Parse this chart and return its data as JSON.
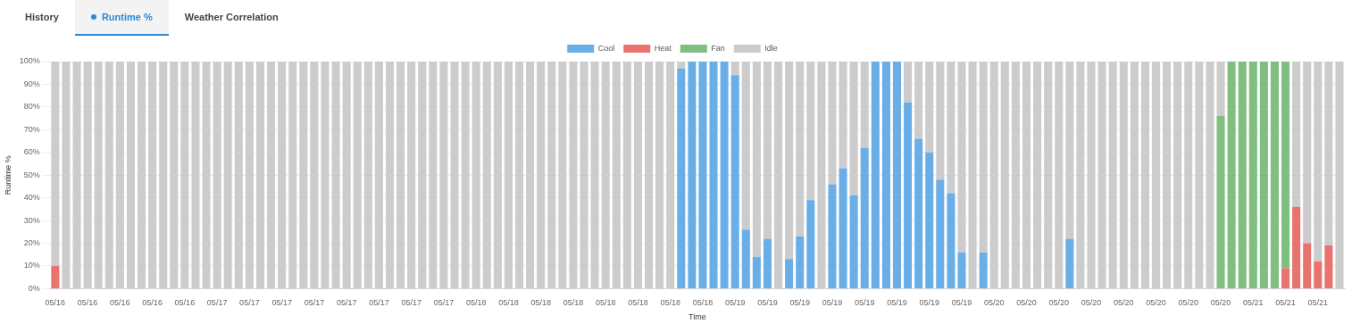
{
  "chart_data": {
    "type": "bar",
    "stacked": true,
    "xlabel": "Time",
    "ylabel": "Runtime %",
    "legend": "top",
    "grid": "y",
    "annotations": [
      "History",
      "Runtime %",
      "Weather Correlation"
    ],
    "ylim": [
      0,
      100
    ],
    "yticks": [
      {
        "value": 0,
        "label": "0%"
      },
      {
        "value": 10,
        "label": "10%"
      },
      {
        "value": 20,
        "label": "20%"
      },
      {
        "value": 30,
        "label": "30%"
      },
      {
        "value": 40,
        "label": "40%"
      },
      {
        "value": 50,
        "label": "50%"
      },
      {
        "value": 60,
        "label": "60%"
      },
      {
        "value": 70,
        "label": "70%"
      },
      {
        "value": 80,
        "label": "80%"
      },
      {
        "value": 90,
        "label": "90%"
      },
      {
        "value": 100,
        "label": "100%"
      }
    ],
    "categories": [
      "05/16",
      null,
      null,
      "05/16",
      null,
      null,
      "05/16",
      null,
      null,
      "05/16",
      null,
      null,
      "05/16",
      null,
      null,
      "05/17",
      null,
      null,
      "05/17",
      null,
      null,
      "05/17",
      null,
      null,
      "05/17",
      null,
      null,
      "05/17",
      null,
      null,
      "05/17",
      null,
      null,
      "05/17",
      null,
      null,
      "05/17",
      null,
      null,
      "05/18",
      null,
      null,
      "05/18",
      null,
      null,
      "05/18",
      null,
      null,
      "05/18",
      null,
      null,
      "05/18",
      null,
      null,
      "05/18",
      null,
      null,
      "05/18",
      null,
      null,
      "05/18",
      null,
      null,
      "05/19",
      null,
      null,
      "05/19",
      null,
      null,
      "05/19",
      null,
      null,
      "05/19",
      null,
      null,
      "05/19",
      null,
      null,
      "05/19",
      null,
      null,
      "05/19",
      null,
      null,
      "05/19",
      null,
      null,
      "05/20",
      null,
      null,
      "05/20",
      null,
      null,
      "05/20",
      null,
      null,
      "05/20",
      null,
      null,
      "05/20",
      null,
      null,
      "05/20",
      null,
      null,
      "05/20",
      null,
      null,
      "05/20",
      null,
      null,
      "05/21",
      null,
      null,
      "05/21",
      null,
      null,
      "05/21",
      null,
      null
    ],
    "series": [
      {
        "name": "Cool",
        "color": "#6aaee8",
        "values": [
          0,
          0,
          0,
          0,
          0,
          0,
          0,
          0,
          0,
          0,
          0,
          0,
          0,
          0,
          0,
          0,
          0,
          0,
          0,
          0,
          0,
          0,
          0,
          0,
          0,
          0,
          0,
          0,
          0,
          0,
          0,
          0,
          0,
          0,
          0,
          0,
          0,
          0,
          0,
          0,
          0,
          0,
          0,
          0,
          0,
          0,
          0,
          0,
          0,
          0,
          0,
          0,
          0,
          0,
          0,
          0,
          0,
          0,
          97,
          100,
          100,
          100,
          100,
          94,
          26,
          14,
          22,
          0,
          13,
          23,
          39,
          0,
          46,
          53,
          41,
          62,
          100,
          100,
          100,
          82,
          66,
          60,
          48,
          42,
          16,
          0,
          16,
          0,
          0,
          0,
          0,
          0,
          0,
          0,
          22,
          0,
          0,
          0,
          0,
          0,
          0,
          0,
          0,
          0,
          0,
          0,
          0,
          0,
          0,
          0,
          0,
          0,
          0,
          0,
          0,
          0,
          0,
          0,
          0,
          0
        ]
      },
      {
        "name": "Heat",
        "color": "#e8736f",
        "values": [
          10,
          0,
          0,
          0,
          0,
          0,
          0,
          0,
          0,
          0,
          0,
          0,
          0,
          0,
          0,
          0,
          0,
          0,
          0,
          0,
          0,
          0,
          0,
          0,
          0,
          0,
          0,
          0,
          0,
          0,
          0,
          0,
          0,
          0,
          0,
          0,
          0,
          0,
          0,
          0,
          0,
          0,
          0,
          0,
          0,
          0,
          0,
          0,
          0,
          0,
          0,
          0,
          0,
          0,
          0,
          0,
          0,
          0,
          0,
          0,
          0,
          0,
          0,
          0,
          0,
          0,
          0,
          0,
          0,
          0,
          0,
          0,
          0,
          0,
          0,
          0,
          0,
          0,
          0,
          0,
          0,
          0,
          0,
          0,
          0,
          0,
          0,
          0,
          0,
          0,
          0,
          0,
          0,
          0,
          0,
          0,
          0,
          0,
          0,
          0,
          0,
          0,
          0,
          0,
          0,
          0,
          0,
          0,
          0,
          0,
          0,
          0,
          0,
          0,
          9,
          36,
          20,
          12,
          19,
          0
        ]
      },
      {
        "name": "Fan",
        "color": "#7fbf7f",
        "values": [
          0,
          0,
          0,
          0,
          0,
          0,
          0,
          0,
          0,
          0,
          0,
          0,
          0,
          0,
          0,
          0,
          0,
          0,
          0,
          0,
          0,
          0,
          0,
          0,
          0,
          0,
          0,
          0,
          0,
          0,
          0,
          0,
          0,
          0,
          0,
          0,
          0,
          0,
          0,
          0,
          0,
          0,
          0,
          0,
          0,
          0,
          0,
          0,
          0,
          0,
          0,
          0,
          0,
          0,
          0,
          0,
          0,
          0,
          0,
          0,
          0,
          0,
          0,
          0,
          0,
          0,
          0,
          0,
          0,
          0,
          0,
          0,
          0,
          0,
          0,
          0,
          0,
          0,
          0,
          0,
          0,
          0,
          0,
          0,
          0,
          0,
          0,
          0,
          0,
          0,
          0,
          0,
          0,
          0,
          0,
          0,
          0,
          0,
          0,
          0,
          0,
          0,
          0,
          0,
          0,
          0,
          0,
          0,
          76,
          100,
          100,
          100,
          100,
          100,
          91,
          0,
          0,
          0,
          0,
          0
        ]
      },
      {
        "name": "Idle",
        "color": "#cccccc",
        "values": [
          90,
          100,
          100,
          100,
          100,
          100,
          100,
          100,
          100,
          100,
          100,
          100,
          100,
          100,
          100,
          100,
          100,
          100,
          100,
          100,
          100,
          100,
          100,
          100,
          100,
          100,
          100,
          100,
          100,
          100,
          100,
          100,
          100,
          100,
          100,
          100,
          100,
          100,
          100,
          100,
          100,
          100,
          100,
          100,
          100,
          100,
          100,
          100,
          100,
          100,
          100,
          100,
          100,
          100,
          100,
          100,
          100,
          100,
          3,
          0,
          0,
          0,
          0,
          6,
          74,
          86,
          78,
          100,
          87,
          77,
          61,
          100,
          54,
          47,
          59,
          38,
          0,
          0,
          0,
          18,
          34,
          40,
          52,
          58,
          84,
          100,
          84,
          100,
          100,
          100,
          100,
          100,
          100,
          100,
          78,
          100,
          100,
          100,
          100,
          100,
          100,
          100,
          100,
          100,
          100,
          100,
          100,
          100,
          24,
          0,
          0,
          0,
          0,
          0,
          0,
          64,
          80,
          88,
          81,
          100
        ]
      }
    ]
  }
}
